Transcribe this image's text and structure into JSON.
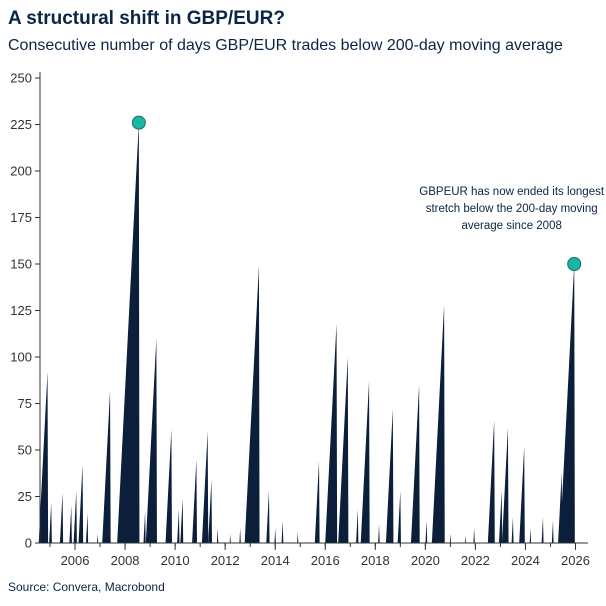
{
  "header": {
    "title": "A structural shift in GBP/EUR?",
    "subtitle": "Consecutive number of days GBP/EUR trades below 200-day moving average"
  },
  "footer": {
    "source": "Source: Convera, Macrobond"
  },
  "colors": {
    "fill": "#0b1f3a",
    "marker": "#1ab5a3",
    "axis": "#333333"
  },
  "chart_data": {
    "type": "area",
    "title": "A structural shift in GBP/EUR?",
    "subtitle": "Consecutive number of days GBP/EUR trades below 200-day moving average",
    "xlabel": "",
    "ylabel": "",
    "xlim": [
      2004.6,
      2026.5
    ],
    "ylim": [
      0,
      250
    ],
    "y_ticks": [
      0,
      25,
      50,
      75,
      100,
      125,
      150,
      175,
      200,
      225,
      250
    ],
    "x_ticks": [
      2006,
      2008,
      2010,
      2012,
      2014,
      2016,
      2018,
      2020,
      2022,
      2024,
      2026
    ],
    "x_tick_labels": [
      "2006",
      "2008",
      "2010",
      "2012",
      "2014",
      "2016",
      "2018",
      "2020",
      "2022",
      "2024",
      "2026"
    ],
    "grid": false,
    "series": [
      {
        "peaks": [
          {
            "end": 2004.9,
            "value": 92
          },
          {
            "end": 2005.05,
            "value": 22
          },
          {
            "end": 2005.5,
            "value": 27
          },
          {
            "end": 2005.85,
            "value": 20
          },
          {
            "end": 2006.05,
            "value": 28
          },
          {
            "end": 2006.3,
            "value": 42
          },
          {
            "end": 2006.5,
            "value": 16
          },
          {
            "end": 2006.9,
            "value": 5
          },
          {
            "end": 2007.4,
            "value": 82
          },
          {
            "end": 2008.55,
            "value": 226
          },
          {
            "end": 2008.8,
            "value": 17
          },
          {
            "end": 2009.25,
            "value": 110
          },
          {
            "end": 2009.85,
            "value": 61
          },
          {
            "end": 2010.15,
            "value": 18
          },
          {
            "end": 2010.3,
            "value": 24
          },
          {
            "end": 2010.85,
            "value": 45
          },
          {
            "end": 2011.3,
            "value": 60
          },
          {
            "end": 2011.45,
            "value": 34
          },
          {
            "end": 2011.7,
            "value": 8
          },
          {
            "end": 2012.2,
            "value": 5
          },
          {
            "end": 2012.6,
            "value": 8
          },
          {
            "end": 2013.35,
            "value": 149
          },
          {
            "end": 2013.75,
            "value": 28
          },
          {
            "end": 2014.0,
            "value": 8
          },
          {
            "end": 2014.3,
            "value": 12
          },
          {
            "end": 2014.9,
            "value": 6
          },
          {
            "end": 2015.75,
            "value": 44
          },
          {
            "end": 2016.45,
            "value": 118
          },
          {
            "end": 2016.9,
            "value": 100
          },
          {
            "end": 2017.3,
            "value": 18
          },
          {
            "end": 2017.75,
            "value": 87
          },
          {
            "end": 2018.15,
            "value": 10
          },
          {
            "end": 2018.7,
            "value": 72
          },
          {
            "end": 2019.0,
            "value": 28
          },
          {
            "end": 2019.75,
            "value": 85
          },
          {
            "end": 2020.05,
            "value": 12
          },
          {
            "end": 2020.75,
            "value": 128
          },
          {
            "end": 2021.0,
            "value": 5
          },
          {
            "end": 2021.6,
            "value": 4
          },
          {
            "end": 2021.95,
            "value": 8
          },
          {
            "end": 2022.75,
            "value": 66
          },
          {
            "end": 2023.05,
            "value": 28
          },
          {
            "end": 2023.3,
            "value": 62
          },
          {
            "end": 2023.5,
            "value": 14
          },
          {
            "end": 2023.95,
            "value": 52
          },
          {
            "end": 2024.2,
            "value": 8
          },
          {
            "end": 2024.7,
            "value": 14
          },
          {
            "end": 2025.1,
            "value": 12
          },
          {
            "end": 2025.45,
            "value": 38
          },
          {
            "end": 2025.95,
            "value": 150
          }
        ]
      }
    ],
    "markers": [
      {
        "x": 2008.55,
        "y": 226
      },
      {
        "x": 2025.95,
        "y": 150
      }
    ],
    "annotations": [
      {
        "lines": [
          "GBPEUR has now ended its longest",
          "stretch below the 200-day moving",
          "average since 2008"
        ],
        "x": 2023.45,
        "y": 187
      }
    ]
  }
}
